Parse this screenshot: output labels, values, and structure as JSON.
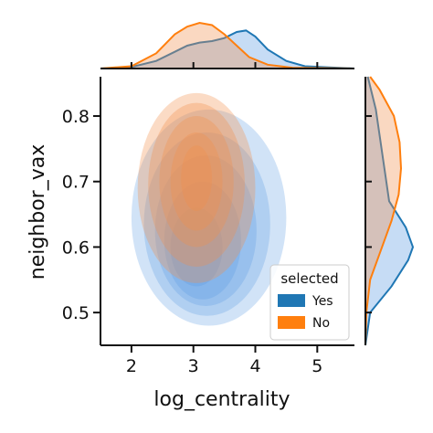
{
  "chart_data": {
    "type": "jointplot-kde",
    "xlabel": "log_centrality",
    "ylabel": "neighbor_vax",
    "xlim": [
      1.5,
      5.6
    ],
    "ylim": [
      0.45,
      0.86
    ],
    "xticks": [
      2,
      3,
      4,
      5
    ],
    "yticks": [
      0.5,
      0.6,
      0.7,
      0.8
    ],
    "xtick_labels": [
      "2",
      "3",
      "4",
      "5"
    ],
    "ytick_labels": [
      "0.5",
      "0.6",
      "0.7",
      "0.8"
    ],
    "grid": false,
    "legend": {
      "title": "selected",
      "placement": "lower-right",
      "entries": [
        {
          "label": "Yes",
          "color": "#1f77b4"
        },
        {
          "label": "No",
          "color": "#ff7f0e"
        }
      ]
    },
    "series": [
      {
        "name": "Yes",
        "color": "#1f77b4",
        "fill": "#5b9be3",
        "kde_center": [
          3.3,
          0.61
        ],
        "kde_levels": [
          {
            "cx": 3.25,
            "cy": 0.645,
            "rx": 1.25,
            "ry": 0.165
          },
          {
            "cx": 3.22,
            "cy": 0.635,
            "rx": 1.02,
            "ry": 0.14
          },
          {
            "cx": 3.2,
            "cy": 0.625,
            "rx": 0.82,
            "ry": 0.115
          },
          {
            "cx": 3.15,
            "cy": 0.61,
            "rx": 0.62,
            "ry": 0.09
          },
          {
            "cx": 3.05,
            "cy": 0.6,
            "rx": 0.42,
            "ry": 0.06
          }
        ],
        "x_marginal": [
          [
            1.5,
            0.0
          ],
          [
            2.0,
            0.02
          ],
          [
            2.4,
            0.1
          ],
          [
            2.7,
            0.22
          ],
          [
            2.9,
            0.3
          ],
          [
            3.1,
            0.34
          ],
          [
            3.3,
            0.36
          ],
          [
            3.5,
            0.4
          ],
          [
            3.7,
            0.48
          ],
          [
            3.85,
            0.5
          ],
          [
            4.0,
            0.42
          ],
          [
            4.2,
            0.25
          ],
          [
            4.5,
            0.1
          ],
          [
            4.8,
            0.03
          ],
          [
            5.6,
            0.0
          ]
        ],
        "y_marginal": [
          [
            0.45,
            0.0
          ],
          [
            0.5,
            0.1
          ],
          [
            0.54,
            0.55
          ],
          [
            0.58,
            0.9
          ],
          [
            0.6,
            1.0
          ],
          [
            0.63,
            0.85
          ],
          [
            0.67,
            0.5
          ],
          [
            0.72,
            0.4
          ],
          [
            0.77,
            0.3
          ],
          [
            0.81,
            0.22
          ],
          [
            0.86,
            0.05
          ]
        ]
      },
      {
        "name": "No",
        "color": "#ff7f0e",
        "fill": "#f28e4c",
        "kde_center": [
          3.05,
          0.69
        ],
        "kde_levels": [
          {
            "cx": 3.05,
            "cy": 0.69,
            "rx": 0.95,
            "ry": 0.145
          },
          {
            "cx": 3.05,
            "cy": 0.695,
            "rx": 0.78,
            "ry": 0.125
          },
          {
            "cx": 3.05,
            "cy": 0.7,
            "rx": 0.6,
            "ry": 0.1
          },
          {
            "cx": 3.05,
            "cy": 0.7,
            "rx": 0.42,
            "ry": 0.075
          },
          {
            "cx": 3.05,
            "cy": 0.705,
            "rx": 0.25,
            "ry": 0.05
          }
        ],
        "x_marginal": [
          [
            1.5,
            0.0
          ],
          [
            2.0,
            0.03
          ],
          [
            2.4,
            0.2
          ],
          [
            2.7,
            0.45
          ],
          [
            2.9,
            0.55
          ],
          [
            3.1,
            0.6
          ],
          [
            3.3,
            0.57
          ],
          [
            3.5,
            0.45
          ],
          [
            3.7,
            0.3
          ],
          [
            3.9,
            0.15
          ],
          [
            4.2,
            0.05
          ],
          [
            4.6,
            0.01
          ],
          [
            5.6,
            0.0
          ]
        ],
        "y_marginal": [
          [
            0.45,
            0.0
          ],
          [
            0.5,
            0.02
          ],
          [
            0.55,
            0.1
          ],
          [
            0.6,
            0.35
          ],
          [
            0.64,
            0.55
          ],
          [
            0.68,
            0.7
          ],
          [
            0.72,
            0.75
          ],
          [
            0.76,
            0.72
          ],
          [
            0.8,
            0.6
          ],
          [
            0.84,
            0.3
          ],
          [
            0.86,
            0.1
          ]
        ]
      }
    ]
  }
}
